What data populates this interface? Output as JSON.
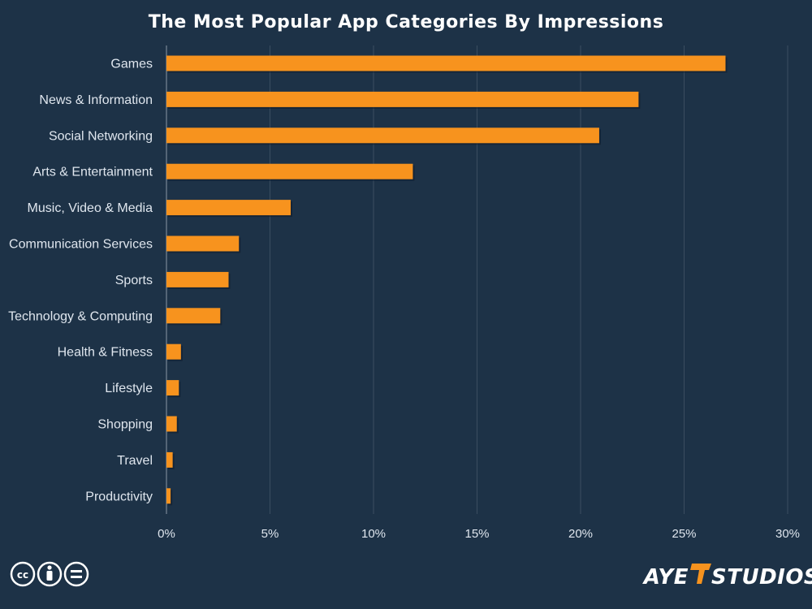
{
  "chart_data": {
    "type": "bar",
    "orientation": "horizontal",
    "title": "The Most Popular App Categories By Impressions",
    "xlabel": "",
    "ylabel": "",
    "xlim": [
      0,
      30
    ],
    "grid": true,
    "categories": [
      "Games",
      "News & Information",
      "Social Networking",
      "Arts & Entertainment",
      "Music, Video & Media",
      "Communication Services",
      "Sports",
      "Technology & Computing",
      "Health & Fitness",
      "Lifestyle",
      "Shopping",
      "Travel",
      "Productivity"
    ],
    "values": [
      27.0,
      22.8,
      20.9,
      11.9,
      6.0,
      3.5,
      3.0,
      2.6,
      0.7,
      0.6,
      0.5,
      0.3,
      0.2
    ],
    "x_ticks": [
      0,
      5,
      10,
      15,
      20,
      25,
      30
    ],
    "x_tick_labels": [
      "0%",
      "5%",
      "10%",
      "15%",
      "20%",
      "25%",
      "30%"
    ],
    "bar_color": "#f7931e",
    "background_color": "#1d3247",
    "grid_color": "#3a4d60"
  },
  "footer": {
    "license_icons": [
      "cc-icon",
      "attribution-icon",
      "no-derivatives-icon"
    ],
    "brand_left": "AYE",
    "brand_right": "STUDIOS"
  }
}
